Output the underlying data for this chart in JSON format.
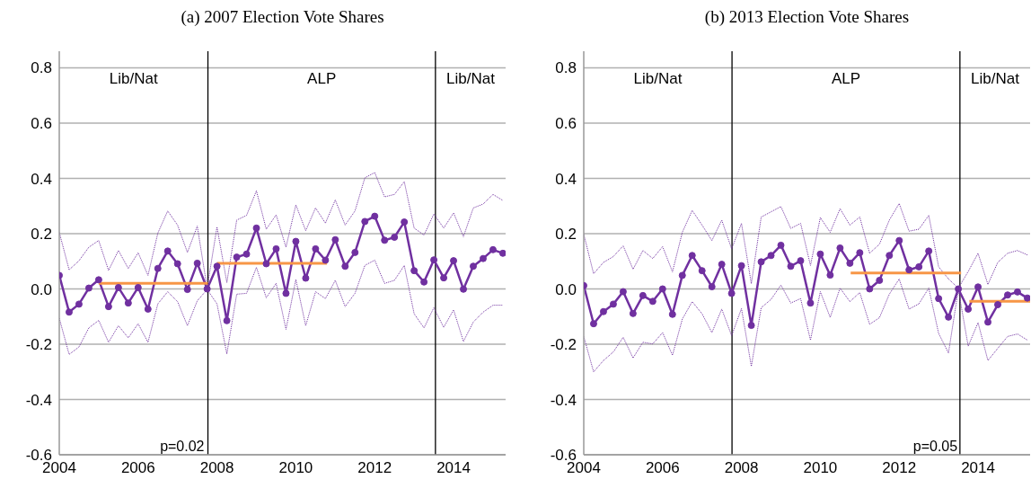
{
  "chart_data": [
    {
      "type": "line",
      "title": "(a) 2007 Election Vote Shares",
      "x": [
        2004,
        2004.25,
        2004.5,
        2004.75,
        2005,
        2005.25,
        2005.5,
        2005.75,
        2006,
        2006.25,
        2006.5,
        2006.75,
        2007,
        2007.25,
        2007.5,
        2007.75,
        2008,
        2008.25,
        2008.5,
        2008.75,
        2009,
        2009.25,
        2009.5,
        2009.75,
        2010,
        2010.25,
        2010.5,
        2010.75,
        2011,
        2011.25,
        2011.5,
        2011.75,
        2012,
        2012.25,
        2012.5,
        2012.75,
        2013,
        2013.25,
        2013.5,
        2013.75,
        2014,
        2014.25,
        2014.5,
        2014.75,
        2015,
        2015.25
      ],
      "series": [
        {
          "color": "#7030a0",
          "values": [
            0.049,
            -0.084,
            -0.055,
            0.003,
            0.033,
            -0.064,
            0.005,
            -0.051,
            0.005,
            -0.073,
            0.074,
            0.137,
            0.091,
            -0.002,
            0.093,
            0.0,
            0.082,
            -0.115,
            0.115,
            0.126,
            0.22,
            0.091,
            0.145,
            -0.016,
            0.172,
            0.039,
            0.145,
            0.104,
            0.178,
            0.082,
            0.132,
            0.244,
            0.263,
            0.176,
            0.187,
            0.242,
            0.066,
            0.025,
            0.105,
            0.04,
            0.102,
            -0.001,
            0.082,
            0.11,
            0.142,
            0.129
          ]
        },
        {
          "color": "#7030a0",
          "marker": "none",
          "line_style": "dotted",
          "values": [
            0.205,
            0.069,
            0.102,
            0.151,
            0.175,
            0.067,
            0.139,
            0.074,
            0.131,
            0.049,
            0.202,
            0.282,
            0.231,
            0.132,
            0.227,
            0.003,
            0.224,
            0.023,
            0.249,
            0.266,
            0.355,
            0.216,
            0.268,
            0.151,
            0.304,
            0.211,
            0.293,
            0.238,
            0.322,
            0.231,
            0.282,
            0.402,
            0.421,
            0.333,
            0.342,
            0.388,
            0.22,
            0.195,
            0.271,
            0.22,
            0.275,
            0.189,
            0.293,
            0.307,
            0.342,
            0.32
          ]
        },
        {
          "color": "#7030a0",
          "marker": "none",
          "line_style": "dotted",
          "values": [
            -0.106,
            -0.237,
            -0.21,
            -0.141,
            -0.114,
            -0.193,
            -0.133,
            -0.177,
            -0.126,
            -0.193,
            -0.054,
            -0.01,
            -0.046,
            -0.133,
            -0.043,
            -0.002,
            -0.054,
            -0.235,
            -0.019,
            -0.016,
            0.078,
            -0.032,
            0.02,
            -0.146,
            0.034,
            -0.133,
            -0.01,
            -0.035,
            0.031,
            -0.064,
            -0.016,
            0.085,
            0.104,
            0.02,
            0.031,
            0.085,
            -0.09,
            -0.141,
            -0.068,
            -0.139,
            -0.076,
            -0.19,
            -0.12,
            -0.084,
            -0.059,
            -0.059
          ]
        },
        {
          "color": "#f79646",
          "marker": "none",
          "x": [
            2005,
            2007.77
          ],
          "values": [
            0.02,
            0.02
          ]
        },
        {
          "color": "#f79646",
          "marker": "none",
          "x": [
            2008,
            2010.79
          ],
          "values": [
            0.093,
            0.093
          ]
        }
      ],
      "ref_lines": [
        {
          "axis": "x",
          "value": 2007.77,
          "color": "#000000"
        },
        {
          "axis": "x",
          "value": 2013.54,
          "color": "#000000"
        }
      ],
      "annotations": [
        "Lib/Nat",
        "ALP",
        "Lib/Nat",
        "p=0.02"
      ],
      "xlim": [
        2004,
        2015.32
      ],
      "xticks": [
        2004,
        2006,
        2008,
        2010,
        2012,
        2014
      ],
      "ylim": [
        -0.6,
        0.86
      ],
      "yticks": [
        -0.6,
        -0.4,
        -0.2,
        {
          "value": 0,
          "label": "0.0"
        },
        0.2,
        0.4,
        0.6,
        0.8
      ],
      "grid": "y",
      "marker": "circle"
    },
    {
      "type": "line",
      "title": "(b) 2013 Election Vote Shares",
      "x": [
        2004,
        2004.25,
        2004.5,
        2004.75,
        2005,
        2005.25,
        2005.5,
        2005.75,
        2006,
        2006.25,
        2006.5,
        2006.75,
        2007,
        2007.25,
        2007.5,
        2007.75,
        2008,
        2008.25,
        2008.5,
        2008.75,
        2009,
        2009.25,
        2009.5,
        2009.75,
        2010,
        2010.25,
        2010.5,
        2010.75,
        2011,
        2011.25,
        2011.5,
        2011.75,
        2012,
        2012.25,
        2012.5,
        2012.75,
        2013,
        2013.25,
        2013.5,
        2013.75,
        2014,
        2014.25,
        2014.5,
        2014.75,
        2015,
        2015.25
      ],
      "series": [
        {
          "color": "#7030a0",
          "values": [
            0.012,
            -0.126,
            -0.082,
            -0.055,
            -0.01,
            -0.089,
            -0.024,
            -0.045,
            0.0,
            -0.092,
            0.049,
            0.121,
            0.066,
            0.008,
            0.089,
            -0.016,
            0.084,
            -0.132,
            0.098,
            0.121,
            0.158,
            0.082,
            0.102,
            -0.051,
            0.126,
            0.05,
            0.148,
            0.093,
            0.131,
            0.0,
            0.031,
            0.121,
            0.175,
            0.069,
            0.08,
            0.137,
            -0.035,
            -0.102,
            0.0,
            -0.073,
            0.007,
            -0.12,
            -0.057,
            -0.022,
            -0.011,
            -0.033
          ]
        },
        {
          "color": "#7030a0",
          "marker": "none",
          "line_style": "dotted",
          "values": [
            0.198,
            0.055,
            0.096,
            0.117,
            0.156,
            0.071,
            0.139,
            0.11,
            0.153,
            0.062,
            0.205,
            0.284,
            0.231,
            0.175,
            0.249,
            0.145,
            0.237,
            0.019,
            0.26,
            0.279,
            0.298,
            0.219,
            0.237,
            0.085,
            0.258,
            0.205,
            0.29,
            0.231,
            0.26,
            0.129,
            0.162,
            0.249,
            0.309,
            0.209,
            0.216,
            0.266,
            0.08,
            0.036,
            0.003,
            0.063,
            0.129,
            0.016,
            0.096,
            0.129,
            0.139,
            0.123
          ]
        },
        {
          "color": "#7030a0",
          "marker": "none",
          "line_style": "dotted",
          "values": [
            -0.172,
            -0.3,
            -0.259,
            -0.228,
            -0.175,
            -0.25,
            -0.193,
            -0.199,
            -0.158,
            -0.24,
            -0.109,
            -0.046,
            -0.09,
            -0.158,
            -0.073,
            -0.169,
            -0.071,
            -0.28,
            -0.068,
            -0.038,
            0.014,
            -0.051,
            -0.035,
            -0.185,
            -0.01,
            -0.103,
            0.003,
            -0.046,
            -0.013,
            -0.128,
            -0.104,
            -0.019,
            0.036,
            -0.073,
            -0.054,
            0.003,
            -0.161,
            -0.232,
            -0.002,
            -0.207,
            -0.122,
            -0.259,
            -0.215,
            -0.172,
            -0.163,
            -0.185
          ]
        },
        {
          "color": "#f79646",
          "marker": "none",
          "x": [
            2010.77,
            2013.57
          ],
          "values": [
            0.058,
            0.058
          ]
        },
        {
          "color": "#f79646",
          "marker": "none",
          "x": [
            2013.78,
            2015.32
          ],
          "values": [
            -0.045,
            -0.045
          ]
        }
      ],
      "ref_lines": [
        {
          "axis": "x",
          "value": 2007.76,
          "color": "#000000"
        },
        {
          "axis": "x",
          "value": 2013.54,
          "color": "#000000"
        }
      ],
      "annotations": [
        "Lib/Nat",
        "ALP",
        "Lib/Nat",
        "p=0.05"
      ],
      "xlim": [
        2004,
        2015.32
      ],
      "xticks": [
        2004,
        2006,
        2008,
        2010,
        2012,
        2014
      ],
      "ylim": [
        -0.6,
        0.86
      ],
      "yticks": [
        -0.6,
        -0.4,
        -0.2,
        {
          "value": 0,
          "label": "0.0"
        },
        0.2,
        0.4,
        0.6,
        0.8
      ],
      "grid": "y",
      "marker": "circle"
    }
  ]
}
